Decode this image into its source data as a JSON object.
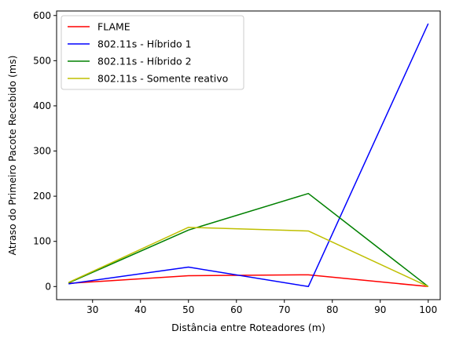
{
  "chart_data": {
    "type": "line",
    "title": "",
    "xlabel": "Distância entre Roteadores (m)",
    "ylabel": "Atraso do Primeiro Pacote Recebido (ms)",
    "x": [
      25,
      50,
      75,
      100
    ],
    "xlim": [
      22.5,
      102.5
    ],
    "ylim": [
      -29,
      610
    ],
    "xticks": [
      30,
      40,
      50,
      60,
      70,
      80,
      90,
      100
    ],
    "yticks": [
      0,
      100,
      200,
      300,
      400,
      500,
      600
    ],
    "grid": false,
    "legend_position": "top-left",
    "series": [
      {
        "name": "FLAME",
        "color": "#ff0000",
        "values": [
          7,
          24,
          26,
          0
        ]
      },
      {
        "name": "802.11s - Híbrido 1",
        "color": "#0000ff",
        "values": [
          6,
          43,
          0,
          582
        ]
      },
      {
        "name": "802.11s - Híbrido 2",
        "color": "#008000",
        "values": [
          8,
          125,
          206,
          0
        ]
      },
      {
        "name": "802.11s - Somente reativo",
        "color": "#bfbf00",
        "values": [
          9,
          131,
          123,
          0
        ]
      }
    ]
  }
}
